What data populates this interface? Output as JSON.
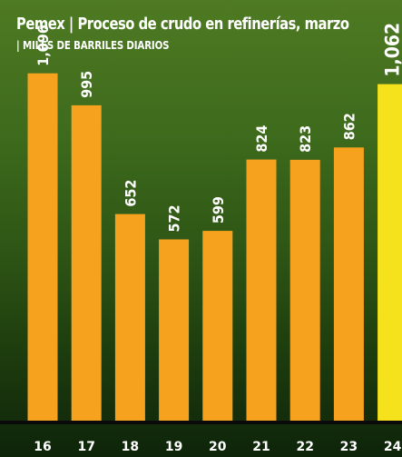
{
  "header": {
    "title": "Pemex | Proceso de crudo en refinerías, marzo",
    "subtitle": "| MILES DE BARRILES DIARIOS"
  },
  "colors": {
    "bar": "#f7a21e",
    "highlight": "#f6e21c",
    "baseline": "#0a0a0a",
    "label": "#ffffff"
  },
  "chart_data": {
    "type": "bar",
    "title": "Pemex | Proceso de crudo en refinerías, marzo",
    "subtitle": "| MILES DE BARRILES DIARIOS",
    "categories": [
      "16",
      "17",
      "18",
      "19",
      "20",
      "21",
      "22",
      "23",
      "24"
    ],
    "values": [
      1096,
      995,
      652,
      572,
      599,
      824,
      823,
      862,
      1062
    ],
    "value_labels": [
      "1,096",
      "995",
      "652",
      "572",
      "599",
      "824",
      "823",
      "862",
      "1,062"
    ],
    "highlight_index": 8,
    "xlabel": "",
    "ylabel": "",
    "ylim": [
      0,
      1250
    ],
    "grid": false,
    "legend": "none"
  }
}
